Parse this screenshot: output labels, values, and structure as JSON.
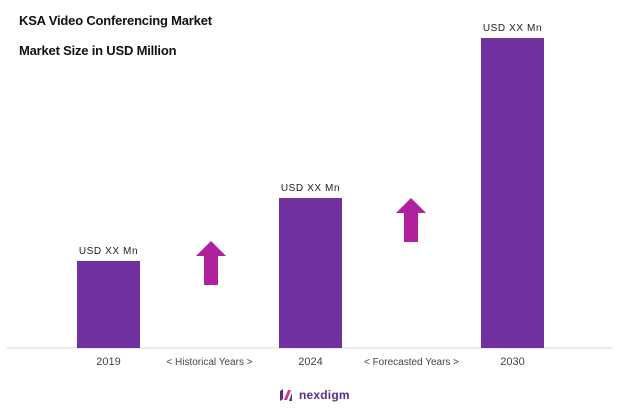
{
  "title": "KSA Video Conferencing Market",
  "subtitle": "Market Size in USD Million",
  "chart_data": {
    "type": "bar",
    "categories": [
      "2019",
      "2024",
      "2030"
    ],
    "values": [
      87,
      150,
      310
    ],
    "data_labels": [
      "USD XX Mn",
      "USD XX Mn",
      "USD XX Mn"
    ],
    "period_labels": [
      "< Historical Years >",
      "< Forecasted Years >"
    ],
    "ylim": [
      0,
      320
    ],
    "grid": false,
    "bar_color": "#7030a0",
    "arrow_color": "#b0219e"
  },
  "brand": {
    "name": "nexdigm",
    "color": "#5b2d8c"
  }
}
